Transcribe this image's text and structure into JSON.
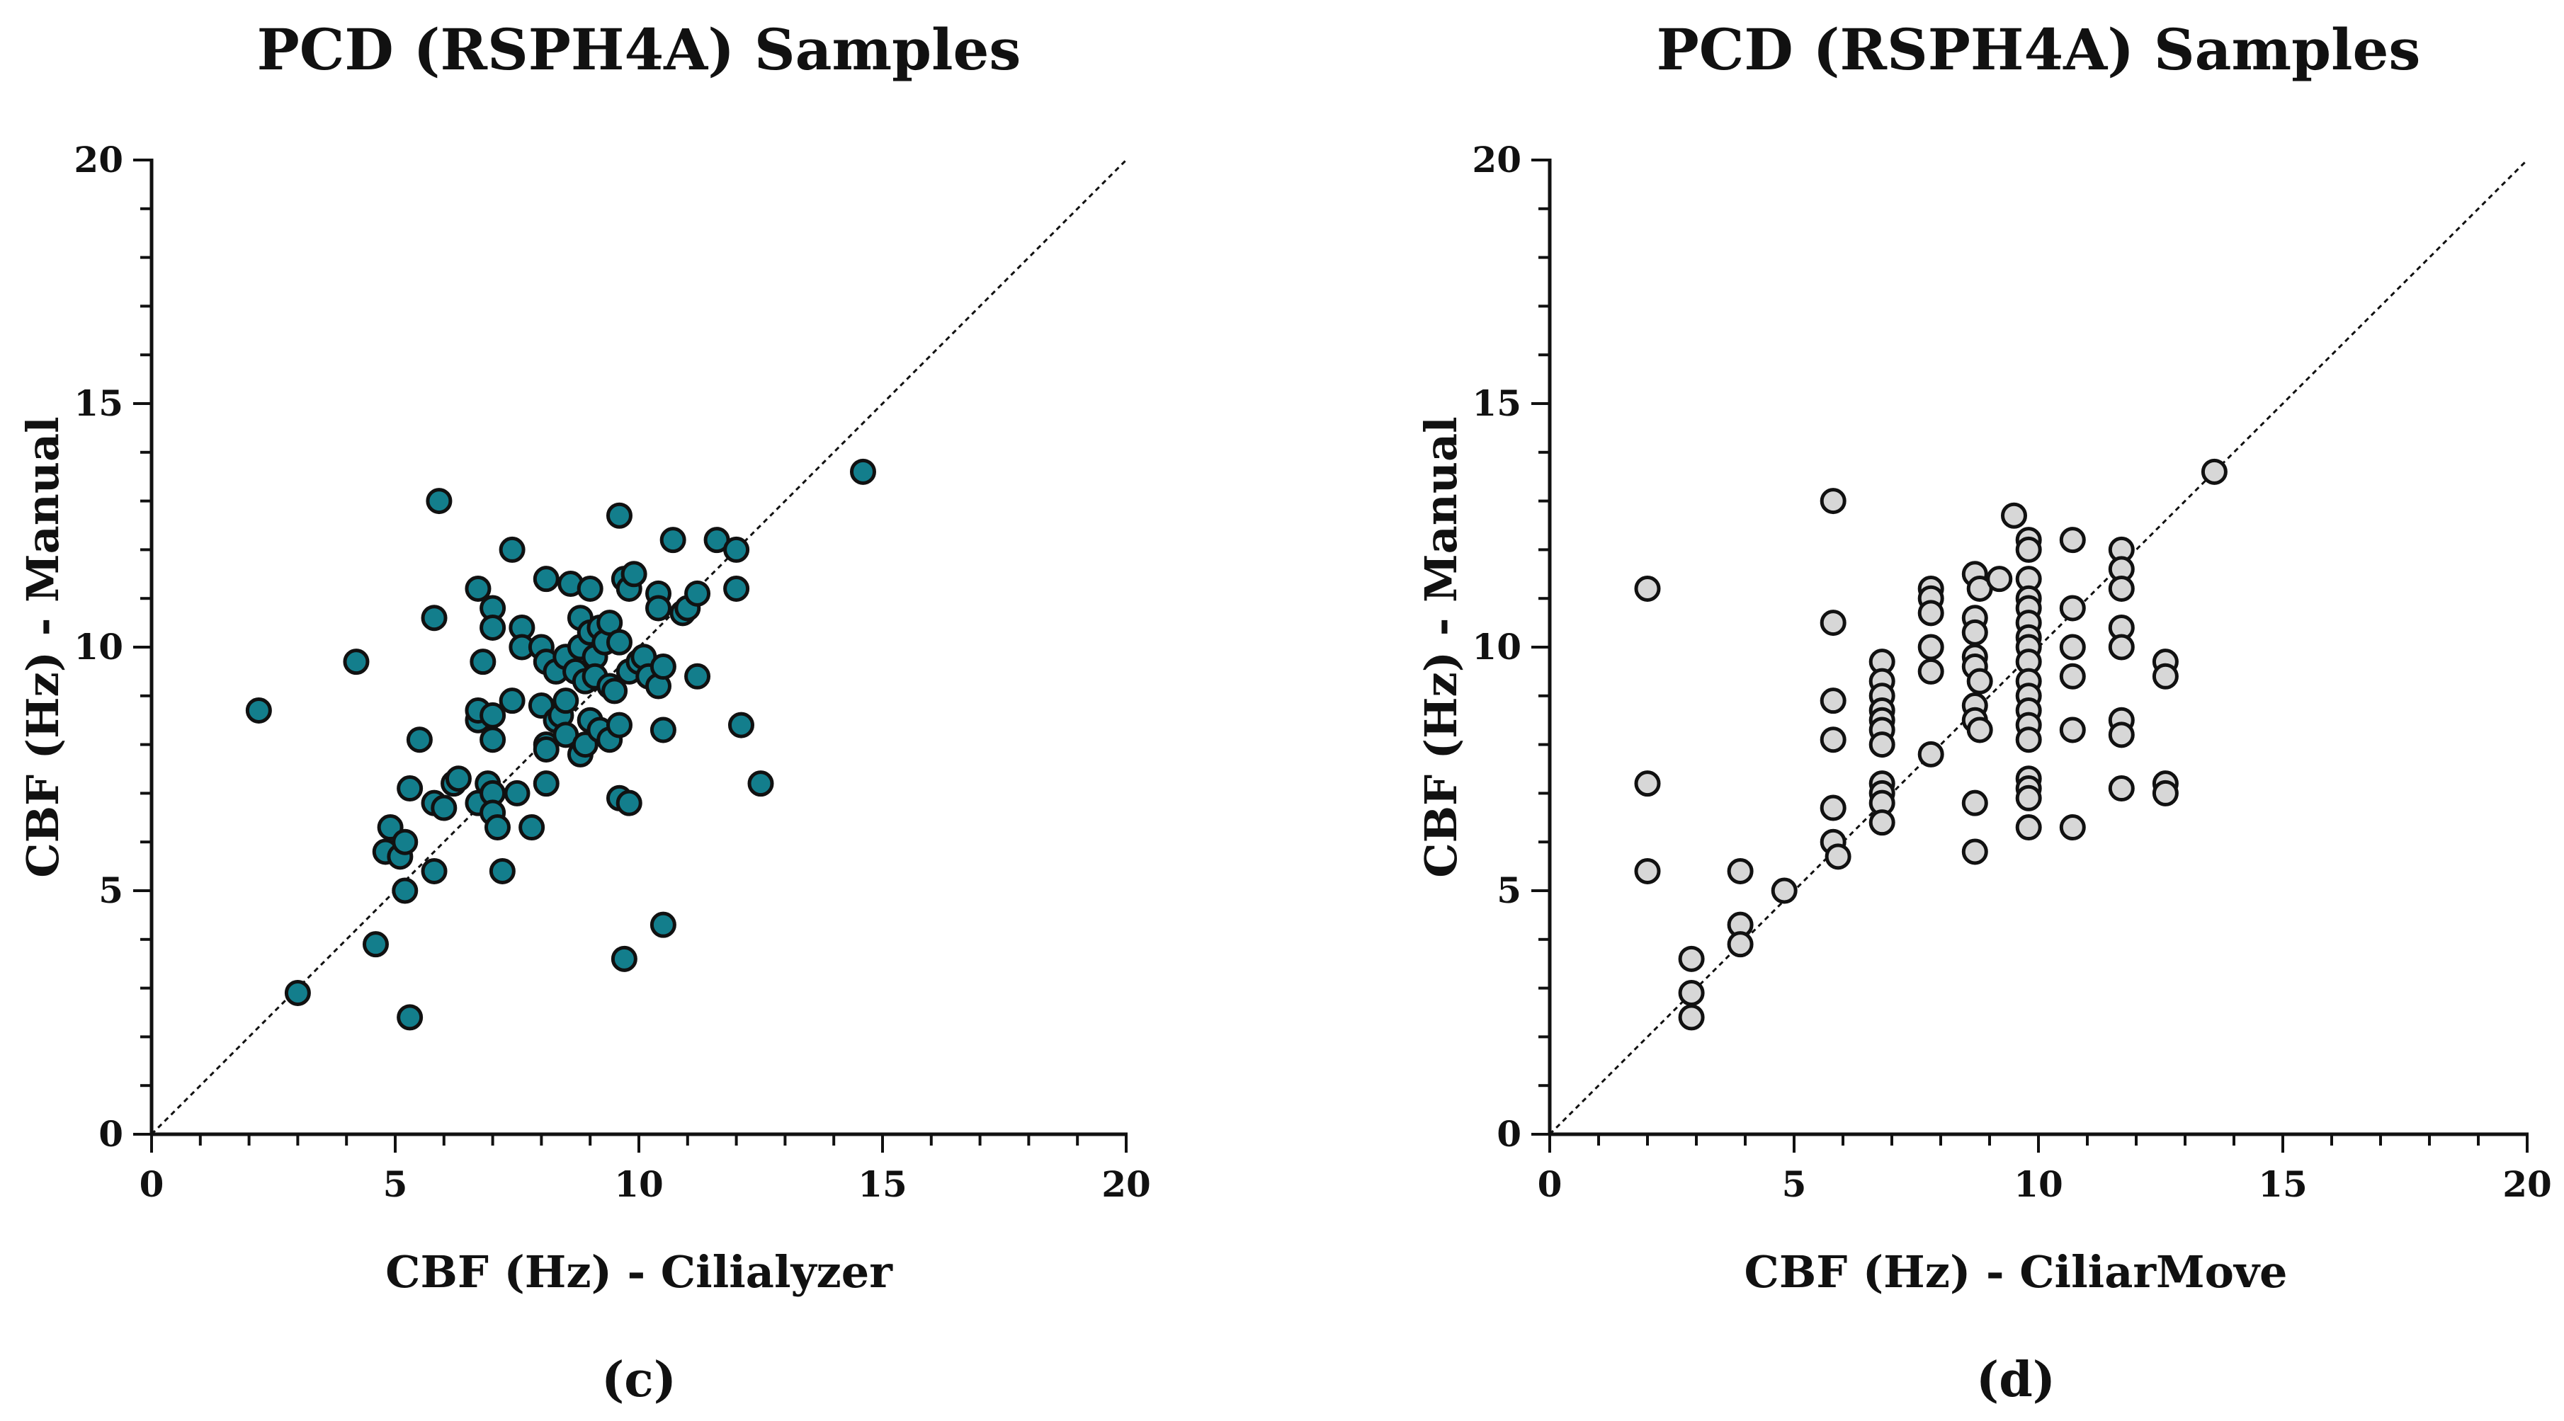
{
  "chart_data": [
    {
      "type": "scatter",
      "title": "PCD (RSPH4A) Samples",
      "xlabel": "CBF (Hz) - Cilialyzer",
      "ylabel": "CBF (Hz) - Manual",
      "panel_label": "(c)",
      "xlim": [
        0,
        20
      ],
      "ylim": [
        0,
        20
      ],
      "xticks": [
        "0",
        "5",
        "10",
        "15",
        "20"
      ],
      "yticks": [
        "0",
        "5",
        "10",
        "15",
        "20"
      ],
      "identity_line": true,
      "grid": false,
      "marker_color": "#137e8c",
      "points": [
        [
          2.2,
          8.7
        ],
        [
          3.0,
          2.9
        ],
        [
          4.2,
          9.7
        ],
        [
          4.6,
          3.9
        ],
        [
          4.8,
          5.8
        ],
        [
          4.9,
          6.3
        ],
        [
          5.1,
          5.7
        ],
        [
          5.2,
          5.0
        ],
        [
          5.2,
          6.0
        ],
        [
          5.3,
          7.1
        ],
        [
          5.3,
          2.4
        ],
        [
          5.5,
          8.1
        ],
        [
          5.8,
          10.6
        ],
        [
          5.8,
          5.4
        ],
        [
          5.8,
          6.8
        ],
        [
          5.9,
          13.0
        ],
        [
          6.0,
          6.7
        ],
        [
          6.2,
          7.2
        ],
        [
          6.3,
          7.3
        ],
        [
          6.7,
          11.2
        ],
        [
          6.7,
          8.5
        ],
        [
          6.7,
          8.7
        ],
        [
          6.7,
          6.8
        ],
        [
          6.8,
          9.7
        ],
        [
          6.9,
          7.2
        ],
        [
          7.0,
          10.8
        ],
        [
          7.0,
          10.4
        ],
        [
          7.0,
          8.1
        ],
        [
          7.0,
          8.6
        ],
        [
          7.0,
          7.0
        ],
        [
          7.0,
          6.6
        ],
        [
          7.1,
          6.3
        ],
        [
          7.2,
          5.4
        ],
        [
          7.4,
          12.0
        ],
        [
          7.4,
          8.9
        ],
        [
          7.5,
          7.0
        ],
        [
          7.6,
          10.4
        ],
        [
          7.6,
          10.0
        ],
        [
          7.8,
          6.3
        ],
        [
          8.0,
          10.0
        ],
        [
          8.0,
          8.8
        ],
        [
          8.1,
          11.4
        ],
        [
          8.1,
          9.7
        ],
        [
          8.1,
          8.0
        ],
        [
          8.1,
          7.9
        ],
        [
          8.1,
          7.2
        ],
        [
          8.3,
          9.5
        ],
        [
          8.3,
          8.5
        ],
        [
          8.4,
          8.6
        ],
        [
          8.5,
          9.8
        ],
        [
          8.5,
          8.9
        ],
        [
          8.5,
          8.2
        ],
        [
          8.6,
          11.3
        ],
        [
          8.7,
          9.5
        ],
        [
          8.8,
          10.6
        ],
        [
          8.8,
          10.0
        ],
        [
          8.8,
          7.8
        ],
        [
          8.9,
          8.0
        ],
        [
          8.9,
          9.3
        ],
        [
          9.0,
          11.2
        ],
        [
          9.0,
          10.3
        ],
        [
          9.0,
          8.5
        ],
        [
          9.1,
          9.8
        ],
        [
          9.1,
          9.4
        ],
        [
          9.2,
          10.4
        ],
        [
          9.2,
          8.3
        ],
        [
          9.3,
          10.1
        ],
        [
          9.4,
          10.5
        ],
        [
          9.4,
          9.2
        ],
        [
          9.4,
          8.1
        ],
        [
          9.5,
          9.1
        ],
        [
          9.6,
          12.7
        ],
        [
          9.6,
          10.1
        ],
        [
          9.6,
          8.4
        ],
        [
          9.6,
          6.9
        ],
        [
          9.7,
          11.4
        ],
        [
          9.7,
          3.6
        ],
        [
          9.8,
          11.2
        ],
        [
          9.8,
          9.5
        ],
        [
          9.8,
          6.8
        ],
        [
          9.9,
          11.5
        ],
        [
          10.0,
          9.7
        ],
        [
          10.1,
          9.8
        ],
        [
          10.2,
          9.4
        ],
        [
          10.4,
          11.1
        ],
        [
          10.4,
          10.8
        ],
        [
          10.4,
          9.2
        ],
        [
          10.5,
          9.6
        ],
        [
          10.5,
          8.3
        ],
        [
          10.5,
          4.3
        ],
        [
          10.7,
          12.2
        ],
        [
          10.9,
          10.7
        ],
        [
          11.0,
          10.8
        ],
        [
          11.2,
          11.1
        ],
        [
          11.2,
          9.4
        ],
        [
          11.6,
          12.2
        ],
        [
          12.0,
          12.0
        ],
        [
          12.0,
          11.2
        ],
        [
          12.1,
          8.4
        ],
        [
          12.5,
          7.2
        ],
        [
          14.6,
          13.6
        ]
      ]
    },
    {
      "type": "scatter",
      "title": "PCD (RSPH4A) Samples",
      "xlabel": "CBF (Hz) - CiliarMove",
      "ylabel": "CBF (Hz) - Manual",
      "panel_label": "(d)",
      "xlim": [
        0,
        20
      ],
      "ylim": [
        0,
        20
      ],
      "xticks": [
        "0",
        "5",
        "10",
        "15",
        "20"
      ],
      "yticks": [
        "0",
        "5",
        "10",
        "15",
        "20"
      ],
      "identity_line": true,
      "grid": false,
      "marker_color": "#d7d7d7",
      "points": [
        [
          2.0,
          11.2
        ],
        [
          2.0,
          7.2
        ],
        [
          2.0,
          5.4
        ],
        [
          2.9,
          3.6
        ],
        [
          2.9,
          2.9
        ],
        [
          2.9,
          2.4
        ],
        [
          3.9,
          5.4
        ],
        [
          3.9,
          4.3
        ],
        [
          3.9,
          3.9
        ],
        [
          4.8,
          5.0
        ],
        [
          5.8,
          13.0
        ],
        [
          5.8,
          10.5
        ],
        [
          5.8,
          8.9
        ],
        [
          5.8,
          8.1
        ],
        [
          5.8,
          6.7
        ],
        [
          5.8,
          6.0
        ],
        [
          5.9,
          5.7
        ],
        [
          6.8,
          9.7
        ],
        [
          6.8,
          9.3
        ],
        [
          6.8,
          9.0
        ],
        [
          6.8,
          8.7
        ],
        [
          6.8,
          8.5
        ],
        [
          6.8,
          8.3
        ],
        [
          6.8,
          8.0
        ],
        [
          6.8,
          7.2
        ],
        [
          6.8,
          7.0
        ],
        [
          6.8,
          6.8
        ],
        [
          6.8,
          6.4
        ],
        [
          7.8,
          11.2
        ],
        [
          7.8,
          11.0
        ],
        [
          7.8,
          10.7
        ],
        [
          7.8,
          10.0
        ],
        [
          7.8,
          9.5
        ],
        [
          7.8,
          7.8
        ],
        [
          8.7,
          11.5
        ],
        [
          8.7,
          10.6
        ],
        [
          8.7,
          10.3
        ],
        [
          8.7,
          9.8
        ],
        [
          8.7,
          9.6
        ],
        [
          8.7,
          8.8
        ],
        [
          8.7,
          8.5
        ],
        [
          8.7,
          6.8
        ],
        [
          8.7,
          5.8
        ],
        [
          8.8,
          11.2
        ],
        [
          8.8,
          9.3
        ],
        [
          8.8,
          8.3
        ],
        [
          9.2,
          11.4
        ],
        [
          9.5,
          12.7
        ],
        [
          9.8,
          12.2
        ],
        [
          9.8,
          12.0
        ],
        [
          9.8,
          11.4
        ],
        [
          9.8,
          11.0
        ],
        [
          9.8,
          10.8
        ],
        [
          9.8,
          10.5
        ],
        [
          9.8,
          10.2
        ],
        [
          9.8,
          10.0
        ],
        [
          9.8,
          9.7
        ],
        [
          9.8,
          9.3
        ],
        [
          9.8,
          9.0
        ],
        [
          9.8,
          8.7
        ],
        [
          9.8,
          8.4
        ],
        [
          9.8,
          8.1
        ],
        [
          9.8,
          7.3
        ],
        [
          9.8,
          7.1
        ],
        [
          9.8,
          6.9
        ],
        [
          9.8,
          6.3
        ],
        [
          10.7,
          12.2
        ],
        [
          10.7,
          10.8
        ],
        [
          10.7,
          10.0
        ],
        [
          10.7,
          9.4
        ],
        [
          10.7,
          8.3
        ],
        [
          10.7,
          6.3
        ],
        [
          11.7,
          12.0
        ],
        [
          11.7,
          11.6
        ],
        [
          11.7,
          11.2
        ],
        [
          11.7,
          10.4
        ],
        [
          11.7,
          10.0
        ],
        [
          11.7,
          8.5
        ],
        [
          11.7,
          8.2
        ],
        [
          11.7,
          7.1
        ],
        [
          12.6,
          9.7
        ],
        [
          12.6,
          9.4
        ],
        [
          12.6,
          7.2
        ],
        [
          12.6,
          7.0
        ],
        [
          13.6,
          13.6
        ]
      ]
    }
  ]
}
